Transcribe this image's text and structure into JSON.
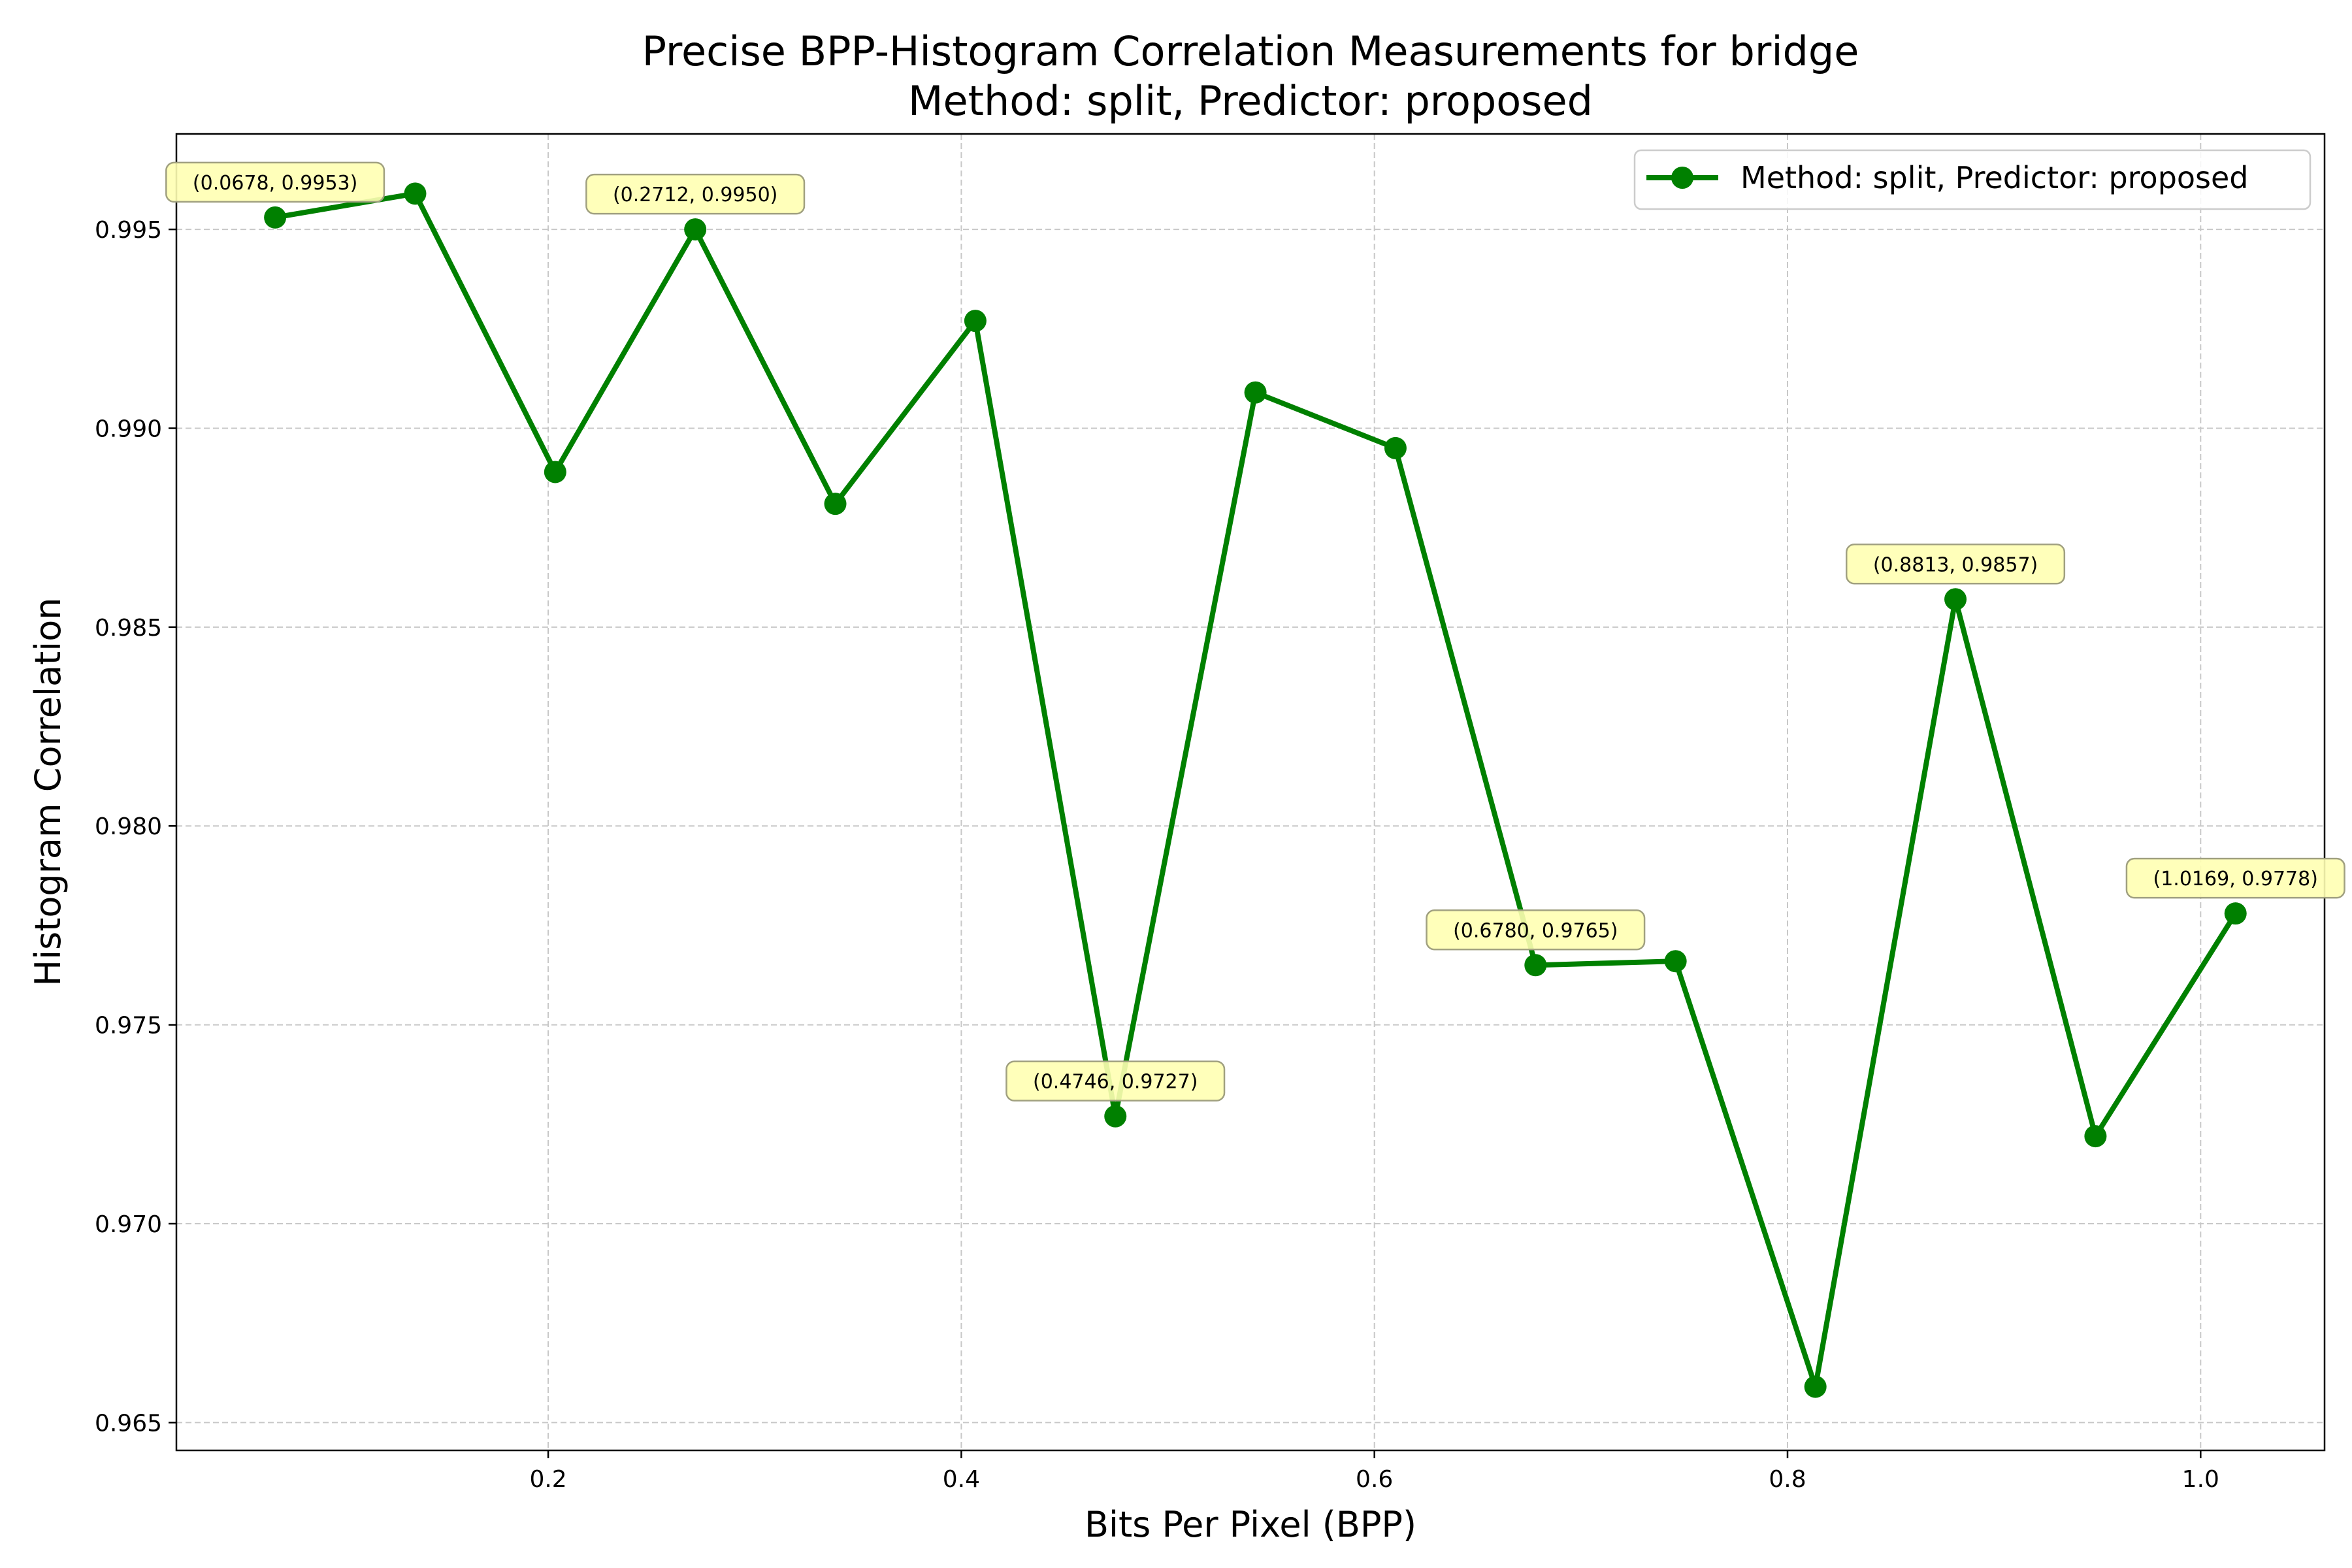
{
  "chart_data": {
    "type": "line",
    "title": "Precise BPP-Histogram Correlation Measurements for bridge",
    "subtitle": "Method: split, Predictor: proposed",
    "xlabel": "Bits Per Pixel (BPP)",
    "ylabel": "Histogram Correlation",
    "xlim": [
      0.02,
      1.06
    ],
    "ylim": [
      0.9643,
      0.9974
    ],
    "xticks": [
      0.2,
      0.4,
      0.6,
      0.8,
      1.0
    ],
    "xtick_labels": [
      "0.2",
      "0.4",
      "0.6",
      "0.8",
      "1.0"
    ],
    "yticks": [
      0.965,
      0.97,
      0.975,
      0.98,
      0.985,
      0.99,
      0.995
    ],
    "ytick_labels": [
      "0.965",
      "0.970",
      "0.975",
      "0.980",
      "0.985",
      "0.990",
      "0.995"
    ],
    "grid": true,
    "legend_position": "upper-right",
    "series": [
      {
        "name": "Method: split, Predictor: proposed",
        "color": "#008000",
        "x": [
          0.0678,
          0.1356,
          0.2034,
          0.2712,
          0.339,
          0.4068,
          0.4746,
          0.5424,
          0.6102,
          0.678,
          0.7458,
          0.8135,
          0.8813,
          0.9491,
          1.0169
        ],
        "y": [
          0.9953,
          0.9959,
          0.9889,
          0.995,
          0.9881,
          0.9927,
          0.9727,
          0.9909,
          0.9895,
          0.9765,
          0.9766,
          0.9659,
          0.9857,
          0.9722,
          0.9778
        ]
      }
    ],
    "annotations": [
      {
        "index": 0,
        "text": "(0.0678, 0.9953)"
      },
      {
        "index": 3,
        "text": "(0.2712, 0.9950)"
      },
      {
        "index": 6,
        "text": "(0.4746, 0.9727)"
      },
      {
        "index": 9,
        "text": "(0.6780, 0.9765)"
      },
      {
        "index": 12,
        "text": "(0.8813, 0.9857)"
      },
      {
        "index": 14,
        "text": "(1.0169, 0.9778)"
      }
    ],
    "colors": {
      "line": "#008000",
      "annotation_fill": "#ffffb3",
      "annotation_stroke": "#a0a080",
      "grid": "#c8c8c8"
    }
  }
}
